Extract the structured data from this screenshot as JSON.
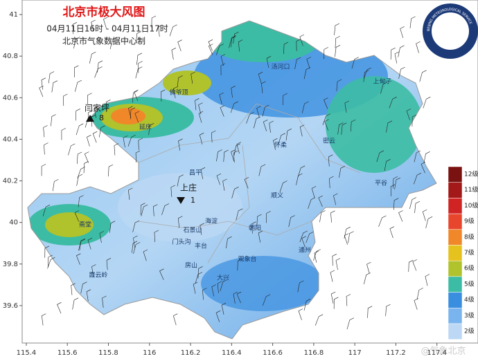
{
  "title": "北京市极大风图",
  "subtitle": "04月11日16时  -  04月11日17时",
  "source": "北京市气象数据中心制",
  "axes": {
    "xlim": [
      115.38,
      117.6
    ],
    "ylim": [
      39.42,
      41.07
    ],
    "xticks": [
      115.4,
      115.6,
      115.8,
      116,
      116.2,
      116.4,
      116.6,
      116.8,
      117,
      117.2,
      117.4
    ],
    "yticks": [
      39.6,
      39.8,
      40,
      40.2,
      40.4,
      40.6,
      40.8,
      41
    ]
  },
  "legend": [
    {
      "label": "12级",
      "color": "#7a1212"
    },
    {
      "label": "11级",
      "color": "#a31818"
    },
    {
      "label": "10级",
      "color": "#d02424"
    },
    {
      "label": "9级",
      "color": "#e8462c"
    },
    {
      "label": "8级",
      "color": "#f0882a"
    },
    {
      "label": "7级",
      "color": "#e6c21e"
    },
    {
      "label": "6级",
      "color": "#b0c22c"
    },
    {
      "label": "5级",
      "color": "#3cbca4"
    },
    {
      "label": "4级",
      "color": "#3a8ee0"
    },
    {
      "label": "3级",
      "color": "#7ab4ee"
    },
    {
      "label": "2级",
      "color": "#bcd8f4"
    }
  ],
  "places": [
    "汤河口",
    "上甸子",
    "佛爷顶",
    "延庆",
    "怀柔",
    "密云",
    "昌平",
    "平谷",
    "顺义",
    "海淀",
    "朝阳",
    "斋堂",
    "石景山",
    "门头沟",
    "丰台",
    "观象台",
    "通州",
    "房山",
    "霞云岭",
    "大兴"
  ],
  "stations": [
    {
      "name": "闫家坪",
      "value": "8"
    },
    {
      "name": "上庄",
      "value": "1"
    }
  ],
  "watermark": "@气象北京",
  "logo_text": "BEIJING METEOROLOGICAL SERVICE"
}
